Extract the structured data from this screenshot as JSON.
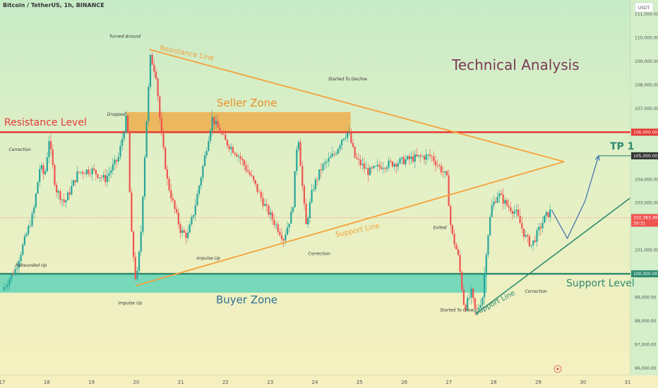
{
  "header": {
    "symbol": "Bitcoin / TetherUS, 1h, BINANCE",
    "currency_button": "USDT"
  },
  "chart_data": {
    "type": "candlestick",
    "title": "Technical Analysis",
    "yaxis": {
      "ticks": [
        "111,000.00",
        "110,000.00",
        "109,000.00",
        "108,000.00",
        "107,000.00",
        "104,000.00",
        "103,000.00",
        "101,000.00",
        "99,000.00",
        "98,000.00",
        "97,000.00",
        "96,000.00"
      ],
      "range": [
        95700,
        111600
      ]
    },
    "xaxis": {
      "ticks": [
        "17",
        "18",
        "19",
        "20",
        "21",
        "22",
        "23",
        "24",
        "25",
        "26",
        "27",
        "28",
        "29",
        "30",
        "31"
      ]
    },
    "price_labels": [
      {
        "value": 106000,
        "text": "106,000.00",
        "color": "#e53935"
      },
      {
        "value": 105000,
        "text": "105,000.00",
        "color": "#333333"
      },
      {
        "value": 102383.49,
        "text": "102,383.49",
        "sub": "30:31",
        "color": "#ef5350"
      },
      {
        "value": 100000,
        "text": "100,000.00",
        "color": "#2e8b6e"
      }
    ],
    "levels": [
      {
        "name": "Resistance Level",
        "value": 106000,
        "color": "#e53935"
      },
      {
        "name": "Support Level",
        "value": 100000,
        "color": "#2e8b6e"
      },
      {
        "name": "TP 1",
        "value": 105000,
        "color": "#2e8b6e"
      }
    ],
    "zones": [
      {
        "name": "Seller Zone",
        "from": 106000,
        "to": 106850,
        "color": "#f0a53c"
      },
      {
        "name": "Buyer Zone",
        "from": 99200,
        "to": 100000,
        "color": "#4fd1b5"
      }
    ],
    "price_path": [
      [
        17.0,
        99.3
      ],
      [
        17.3,
        100.2
      ],
      [
        17.7,
        102.6
      ],
      [
        17.85,
        104.6
      ],
      [
        17.95,
        104.1
      ],
      [
        18.05,
        105.7
      ],
      [
        18.2,
        103.6
      ],
      [
        18.4,
        103.0
      ],
      [
        18.7,
        104.3
      ],
      [
        19.0,
        104.4
      ],
      [
        19.3,
        104.0
      ],
      [
        19.6,
        104.9
      ],
      [
        19.8,
        106.8
      ],
      [
        19.88,
        102.0
      ],
      [
        20.0,
        99.5
      ],
      [
        20.1,
        101.5
      ],
      [
        20.22,
        106.1
      ],
      [
        20.32,
        109.2
      ],
      [
        20.45,
        108.4
      ],
      [
        20.55,
        106.1
      ],
      [
        20.7,
        103.9
      ],
      [
        20.85,
        102.8
      ],
      [
        21.0,
        101.8
      ],
      [
        21.15,
        101.6
      ],
      [
        21.3,
        102.7
      ],
      [
        21.5,
        104.6
      ],
      [
        21.7,
        106.6
      ],
      [
        21.85,
        106.1
      ],
      [
        22.0,
        105.6
      ],
      [
        22.3,
        105.0
      ],
      [
        22.6,
        104.0
      ],
      [
        22.9,
        102.8
      ],
      [
        23.15,
        102.0
      ],
      [
        23.3,
        101.5
      ],
      [
        23.5,
        102.7
      ],
      [
        23.62,
        106.1
      ],
      [
        23.72,
        103.7
      ],
      [
        23.8,
        102.0
      ],
      [
        23.95,
        103.6
      ],
      [
        24.15,
        104.5
      ],
      [
        24.45,
        105.1
      ],
      [
        24.62,
        105.8
      ],
      [
        24.75,
        106.0
      ],
      [
        24.9,
        104.9
      ],
      [
        25.2,
        104.3
      ],
      [
        25.5,
        104.6
      ],
      [
        25.8,
        104.7
      ],
      [
        26.2,
        104.9
      ],
      [
        26.6,
        105.0
      ],
      [
        26.95,
        104.1
      ],
      [
        27.05,
        101.8
      ],
      [
        27.2,
        100.8
      ],
      [
        27.35,
        98.5
      ],
      [
        27.5,
        99.2
      ],
      [
        27.6,
        98.3
      ],
      [
        27.75,
        99.0
      ],
      [
        27.85,
        101.3
      ],
      [
        27.95,
        102.8
      ],
      [
        28.1,
        103.4
      ],
      [
        28.3,
        102.9
      ],
      [
        28.5,
        102.6
      ],
      [
        28.7,
        101.6
      ],
      [
        28.85,
        101.2
      ],
      [
        29.0,
        101.8
      ],
      [
        29.15,
        102.4
      ],
      [
        29.3,
        102.7
      ]
    ],
    "projection": [
      [
        29.3,
        102.7
      ],
      [
        29.65,
        101.5
      ],
      [
        30.05,
        103.1
      ],
      [
        30.35,
        105.0
      ]
    ],
    "trendlines": [
      {
        "name": "Resistance Line",
        "from": [
          20.3,
          109.5
        ],
        "to": [
          29.58,
          104.75
        ]
      },
      {
        "name": "Support Line",
        "from": [
          20.0,
          99.5
        ],
        "to": [
          29.58,
          104.75
        ]
      },
      {
        "name": "Support Line",
        "from": [
          27.6,
          98.3
        ],
        "to": [
          31.05,
          103.2
        ]
      }
    ],
    "annotations": [
      {
        "text": "Rebounded Up",
        "x": 17.3,
        "y": 100.3
      },
      {
        "text": "Correction",
        "x": 17.15,
        "y": 105.2
      },
      {
        "text": "Dropped",
        "x": 19.35,
        "y": 106.7
      },
      {
        "text": "Turned Around",
        "x": 19.4,
        "y": 110.0
      },
      {
        "text": "Impulse Up",
        "x": 19.6,
        "y": 98.7
      },
      {
        "text": "Impulse Up",
        "x": 21.35,
        "y": 100.6
      },
      {
        "text": "Correction",
        "x": 23.85,
        "y": 100.8
      },
      {
        "text": "Started To Decline",
        "x": 24.3,
        "y": 108.2
      },
      {
        "text": "Exited",
        "x": 26.65,
        "y": 101.9
      },
      {
        "text": "Started To Grow",
        "x": 26.8,
        "y": 98.4
      },
      {
        "text": "Correction",
        "x": 28.7,
        "y": 99.2
      }
    ]
  },
  "labels": {
    "title": "Technical Analysis",
    "resistance_level": "Resistance Level",
    "support_level": "Support Level",
    "seller_zone": "Seller Zone",
    "buyer_zone": "Buyer Zone",
    "resistance_line": "Resistance Line",
    "support_line_1": "Support Line",
    "support_line_2": "Support Line",
    "tp1": "TP 1"
  },
  "colors": {
    "candle_up": "#26a69a",
    "candle_down": "#ef5350",
    "triangle": "#f5a23a",
    "resistance": "#e53935",
    "support": "#2e8b6e",
    "title": "#7b3a55"
  }
}
